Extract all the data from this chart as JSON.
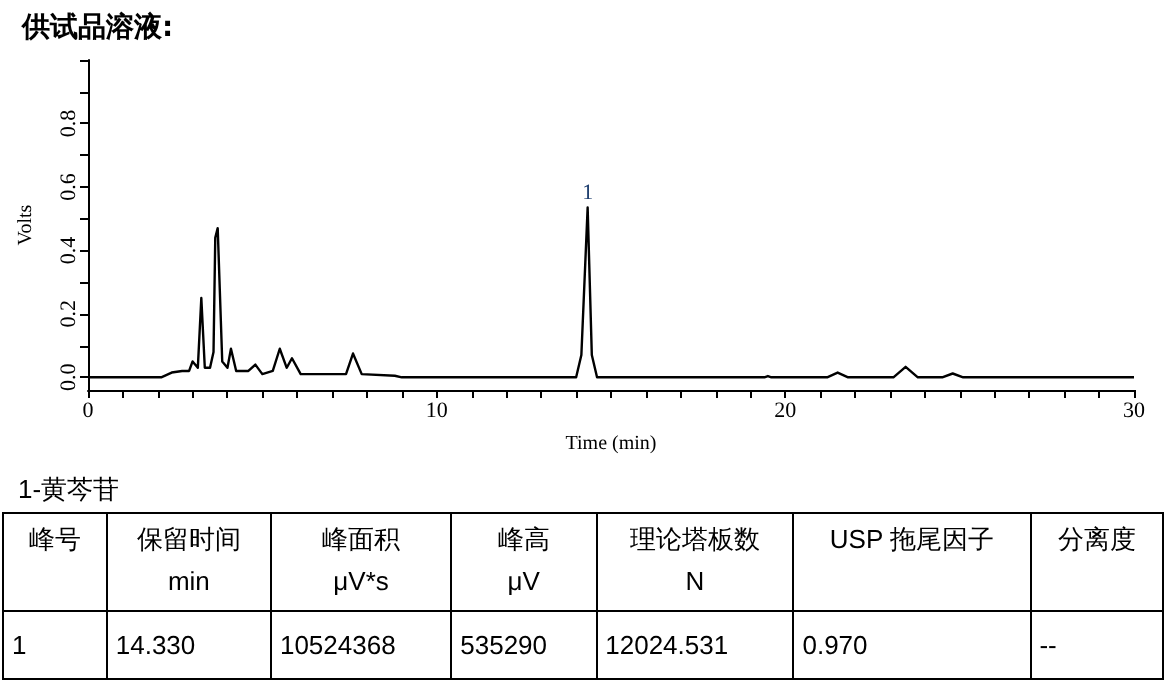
{
  "chart_data": {
    "type": "line",
    "title": "供试品溶液:",
    "xlabel": "Time (min)",
    "ylabel": "Volts",
    "x": [
      0,
      2.1,
      2.4,
      2.7,
      2.9,
      3.0,
      3.15,
      3.25,
      3.35,
      3.5,
      3.6,
      3.65,
      3.72,
      3.85,
      4.0,
      4.1,
      4.25,
      4.6,
      4.8,
      5.0,
      5.3,
      5.5,
      5.7,
      5.85,
      6.1,
      7.4,
      7.6,
      7.85,
      8.8,
      9,
      14.0,
      14.15,
      14.33,
      14.45,
      14.6,
      19.4,
      19.5,
      19.6,
      21.2,
      21.5,
      21.8,
      23.1,
      23.45,
      23.8,
      24.5,
      24.8,
      25.1,
      30
    ],
    "series": [
      {
        "color": "#000000",
        "values": [
          0,
          0,
          0.015,
          0.02,
          0.02,
          0.05,
          0.03,
          0.25,
          0.03,
          0.03,
          0.08,
          0.44,
          0.47,
          0.05,
          0.03,
          0.09,
          0.02,
          0.02,
          0.04,
          0.01,
          0.02,
          0.09,
          0.03,
          0.06,
          0.01,
          0.01,
          0.075,
          0.01,
          0.005,
          0,
          0,
          0.07,
          0.535,
          0.07,
          0,
          0,
          0.004,
          0,
          0,
          0.015,
          0,
          0,
          0.033,
          0,
          0,
          0.012,
          0,
          0
        ]
      }
    ],
    "xlim": [
      0,
      30
    ],
    "xticks": [
      0,
      {
        "value": 1,
        "label": null
      },
      {
        "value": 2,
        "label": null
      },
      {
        "value": 3,
        "label": null
      },
      {
        "value": 4,
        "label": null
      },
      {
        "value": 5,
        "label": null
      },
      {
        "value": 6,
        "label": null
      },
      {
        "value": 7,
        "label": null
      },
      {
        "value": 8,
        "label": null
      },
      {
        "value": 9,
        "label": null
      },
      10,
      {
        "value": 11,
        "label": null
      },
      {
        "value": 12,
        "label": null
      },
      {
        "value": 13,
        "label": null
      },
      {
        "value": 14,
        "label": null
      },
      {
        "value": 15,
        "label": null
      },
      {
        "value": 16,
        "label": null
      },
      {
        "value": 17,
        "label": null
      },
      {
        "value": 18,
        "label": null
      },
      {
        "value": 19,
        "label": null
      },
      20,
      {
        "value": 21,
        "label": null
      },
      {
        "value": 22,
        "label": null
      },
      {
        "value": 23,
        "label": null
      },
      {
        "value": 24,
        "label": null
      },
      {
        "value": 25,
        "label": null
      },
      {
        "value": 26,
        "label": null
      },
      {
        "value": 27,
        "label": null
      },
      {
        "value": 28,
        "label": null
      },
      {
        "value": 29,
        "label": null
      },
      30
    ],
    "ylim": [
      -0.04,
      1.0
    ],
    "yticks": [
      {
        "value": 0,
        "label": "0.0"
      },
      {
        "value": 0.1,
        "label": null
      },
      {
        "value": 0.2,
        "label": "0.2"
      },
      {
        "value": 0.3,
        "label": null
      },
      {
        "value": 0.4,
        "label": "0.4"
      },
      {
        "value": 0.5,
        "label": null
      },
      {
        "value": 0.6,
        "label": "0.6"
      },
      {
        "value": 0.7,
        "label": null
      },
      {
        "value": 0.8,
        "label": "0.8"
      },
      {
        "value": 0.9,
        "label": null
      },
      {
        "value": 1.0,
        "label": null
      }
    ],
    "grid": false,
    "marker": "none",
    "line_style": "solid",
    "annotations": [
      {
        "text": "1",
        "x": 14.33,
        "y": 0.535
      },
      "1-黄芩苷",
      "峰号",
      "保留时间\nmin",
      "峰面积\nμV*s",
      "峰高\nμV",
      "理论塔板数\nN",
      "USP 拖尾因子",
      "分离度",
      "1",
      "14.330",
      "10524368",
      "535290",
      "12024.531",
      "0.970",
      "--"
    ]
  }
}
